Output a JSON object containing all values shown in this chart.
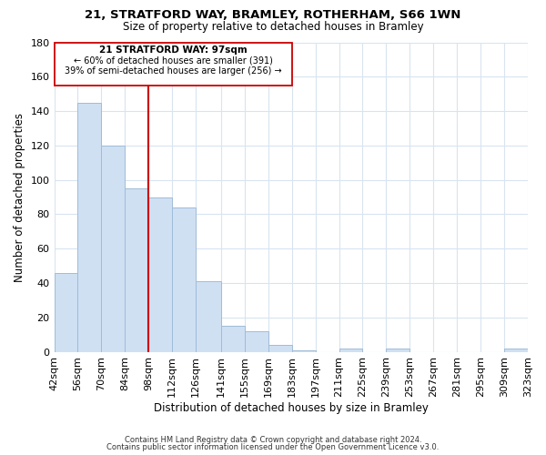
{
  "title1": "21, STRATFORD WAY, BRAMLEY, ROTHERHAM, S66 1WN",
  "title2": "Size of property relative to detached houses in Bramley",
  "xlabel": "Distribution of detached houses by size in Bramley",
  "ylabel": "Number of detached properties",
  "bar_edges": [
    42,
    56,
    70,
    84,
    98,
    112,
    126,
    141,
    155,
    169,
    183,
    197,
    211,
    225,
    239,
    253,
    267,
    281,
    295,
    309,
    323
  ],
  "bar_heights": [
    46,
    145,
    120,
    95,
    90,
    84,
    41,
    15,
    12,
    4,
    1,
    0,
    2,
    0,
    2,
    0,
    0,
    0,
    0,
    2
  ],
  "bar_color": "#cfe0f3",
  "bar_edgecolor": "#a0bcd8",
  "vline_x": 98,
  "vline_color": "#cc0000",
  "ylim": [
    0,
    180
  ],
  "yticks": [
    0,
    20,
    40,
    60,
    80,
    100,
    120,
    140,
    160,
    180
  ],
  "xtick_labels": [
    "42sqm",
    "56sqm",
    "70sqm",
    "84sqm",
    "98sqm",
    "112sqm",
    "126sqm",
    "141sqm",
    "155sqm",
    "169sqm",
    "183sqm",
    "197sqm",
    "211sqm",
    "225sqm",
    "239sqm",
    "253sqm",
    "267sqm",
    "281sqm",
    "295sqm",
    "309sqm",
    "323sqm"
  ],
  "annotation_title": "21 STRATFORD WAY: 97sqm",
  "annotation_line1": "← 60% of detached houses are smaller (391)",
  "annotation_line2": "39% of semi-detached houses are larger (256) →",
  "footer1": "Contains HM Land Registry data © Crown copyright and database right 2024.",
  "footer2": "Contains public sector information licensed under the Open Government Licence v3.0.",
  "grid_color": "#d8e4f0",
  "background_color": "#ffffff"
}
